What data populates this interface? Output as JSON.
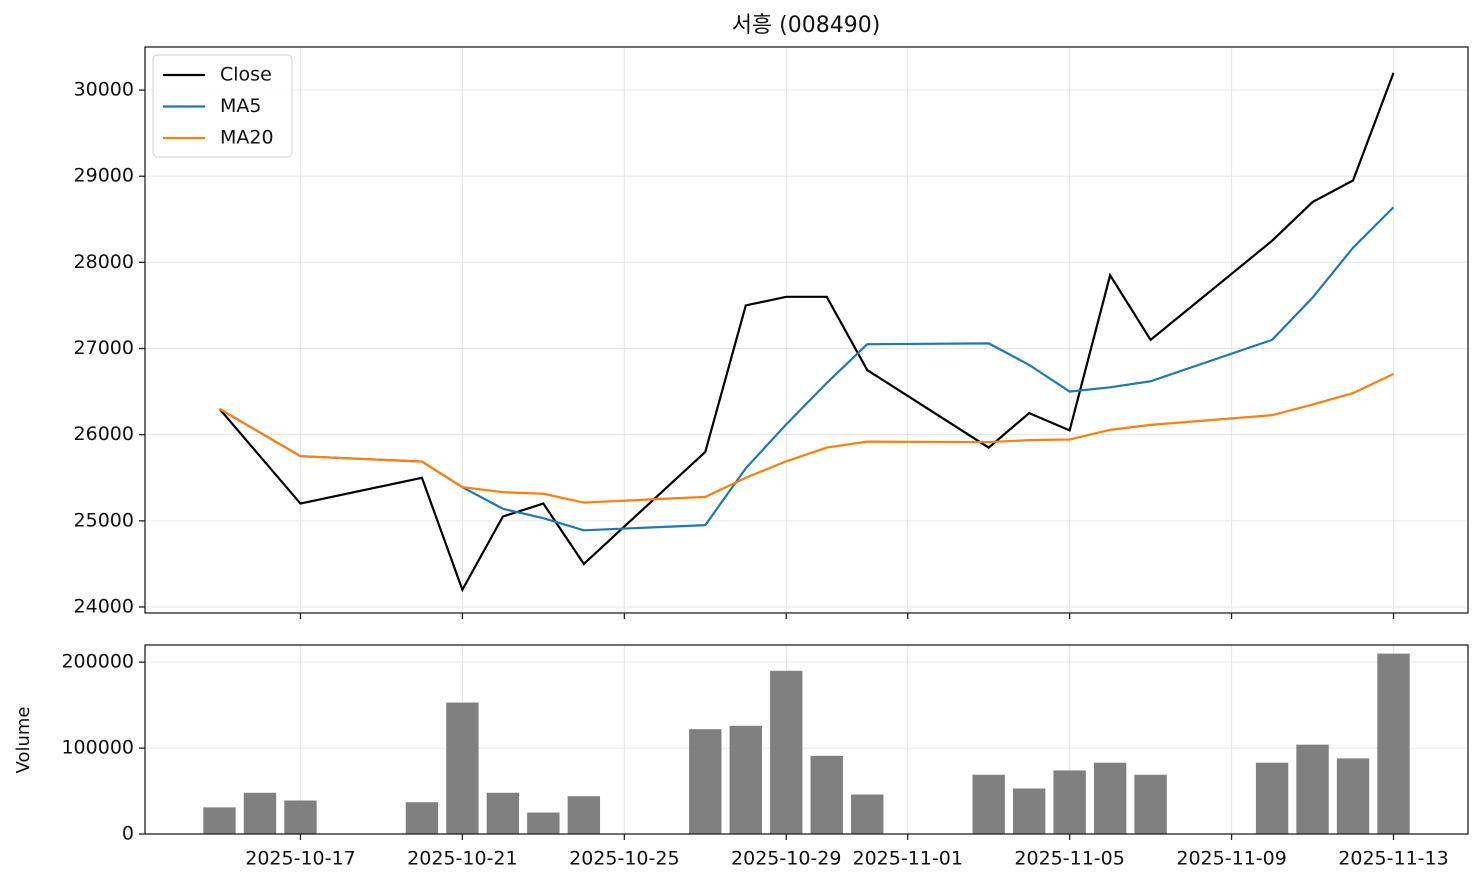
{
  "chart_data": [
    {
      "type": "line",
      "title": "서흥 (008490)",
      "x": [
        "2025-10-15",
        "2025-10-16",
        "2025-10-17",
        "2025-10-20",
        "2025-10-21",
        "2025-10-22",
        "2025-10-23",
        "2025-10-24",
        "2025-10-27",
        "2025-10-28",
        "2025-10-29",
        "2025-10-30",
        "2025-10-31",
        "2025-11-03",
        "2025-11-04",
        "2025-11-05",
        "2025-11-06",
        "2025-11-07",
        "2025-11-10",
        "2025-11-11",
        "2025-11-12",
        "2025-11-13"
      ],
      "series": [
        {
          "name": "Close",
          "color": "#000000",
          "values": [
            26300,
            25750,
            25200,
            25500,
            24200,
            25050,
            25200,
            24500,
            25800,
            27500,
            27600,
            27600,
            26750,
            25850,
            26250,
            26050,
            27850,
            27100,
            28250,
            28700,
            28950,
            30200
          ]
        },
        {
          "name": "MA5",
          "color": "#1f77b4",
          "values": [
            26300,
            26025,
            25750,
            25688,
            25390,
            25140,
            25030,
            24890,
            24950,
            25610,
            26120,
            26600,
            27050,
            27060,
            26810,
            26500,
            26550,
            26620,
            27100,
            27590,
            28170,
            28640
          ]
        },
        {
          "name": "MA20",
          "color": "#ff7f0e",
          "values": [
            26300,
            26025,
            25750,
            25688,
            25390,
            25333,
            25314,
            25212,
            25278,
            25500,
            25691,
            25850,
            25919,
            25914,
            25937,
            25944,
            26056,
            26114,
            26226,
            26350,
            26483,
            26705
          ]
        }
      ],
      "ylim": [
        23930,
        30500
      ],
      "yticks": [
        24000,
        25000,
        26000,
        27000,
        28000,
        29000,
        30000
      ],
      "grid": true,
      "legend": "upper left"
    },
    {
      "type": "bar",
      "ylabel": "Volume",
      "color": "#808080",
      "x": [
        "2025-10-15",
        "2025-10-16",
        "2025-10-17",
        "2025-10-20",
        "2025-10-21",
        "2025-10-22",
        "2025-10-23",
        "2025-10-24",
        "2025-10-27",
        "2025-10-28",
        "2025-10-29",
        "2025-10-30",
        "2025-10-31",
        "2025-11-03",
        "2025-11-04",
        "2025-11-05",
        "2025-11-06",
        "2025-11-07",
        "2025-11-10",
        "2025-11-11",
        "2025-11-12",
        "2025-11-13"
      ],
      "values": [
        31000,
        48000,
        39000,
        37000,
        153000,
        48000,
        25000,
        44000,
        122000,
        126000,
        190000,
        91000,
        46000,
        69000,
        53000,
        74000,
        83000,
        69000,
        83000,
        104000,
        88000,
        210000
      ],
      "ylim": [
        0,
        220000
      ],
      "yticks": [
        0,
        100000,
        200000
      ],
      "xticks": [
        "2025-10-17",
        "2025-10-21",
        "2025-10-25",
        "2025-10-29",
        "2025-11-01",
        "2025-11-05",
        "2025-11-09",
        "2025-11-13"
      ],
      "grid": true
    }
  ]
}
